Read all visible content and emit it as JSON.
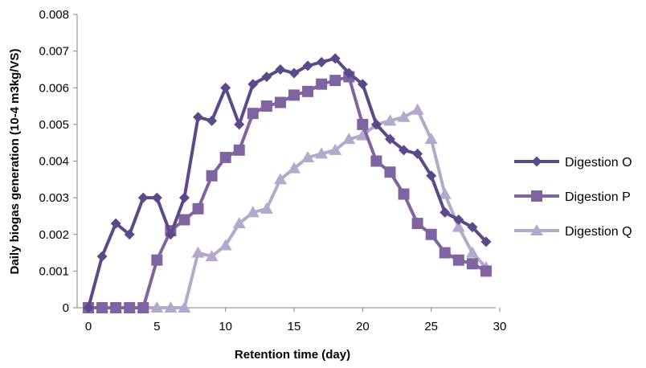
{
  "chart_data": {
    "type": "line",
    "xlabel": "Retention time (day)",
    "ylabel": "Daily biogas generation (10-4 m3kg/VS)",
    "xlim": [
      0,
      30
    ],
    "ylim": [
      0,
      0.008
    ],
    "xticks": [
      0,
      5,
      10,
      15,
      20,
      25,
      30
    ],
    "yticks": [
      0,
      0.001,
      0.002,
      0.003,
      0.004,
      0.005,
      0.006,
      0.007,
      0.008
    ],
    "ytick_labels": [
      "0",
      "0.001",
      "0.002",
      "0.003",
      "0.004",
      "0.005",
      "0.006",
      "0.007",
      "0.008"
    ],
    "grid": false,
    "legend_position": "right",
    "series": [
      {
        "name": "Digestion O",
        "marker": "diamond",
        "color": "#5b4a8a",
        "x": [
          0,
          1,
          2,
          3,
          4,
          5,
          6,
          7,
          8,
          9,
          10,
          11,
          12,
          13,
          14,
          15,
          16,
          17,
          18,
          19,
          20,
          21,
          22,
          23,
          24,
          25,
          26,
          27,
          28,
          29
        ],
        "y": [
          0,
          0.0014,
          0.0023,
          0.002,
          0.003,
          0.003,
          0.002,
          0.003,
          0.0052,
          0.0051,
          0.006,
          0.005,
          0.0061,
          0.0063,
          0.0065,
          0.0064,
          0.0066,
          0.0067,
          0.0068,
          0.0064,
          0.0061,
          0.005,
          0.0046,
          0.0043,
          0.0042,
          0.0036,
          0.0026,
          0.0024,
          0.0022,
          0.0018
        ]
      },
      {
        "name": "Digestion P",
        "marker": "square",
        "color": "#8064a2",
        "x": [
          0,
          1,
          2,
          3,
          4,
          5,
          6,
          7,
          8,
          9,
          10,
          11,
          12,
          13,
          14,
          15,
          16,
          17,
          18,
          19,
          20,
          21,
          22,
          23,
          24,
          25,
          26,
          27,
          28,
          29
        ],
        "y": [
          0,
          0,
          0,
          0,
          0,
          0.0013,
          0.0021,
          0.0024,
          0.0027,
          0.0036,
          0.0041,
          0.0043,
          0.0053,
          0.0055,
          0.0056,
          0.0058,
          0.0059,
          0.0061,
          0.0062,
          0.0063,
          0.005,
          0.004,
          0.0037,
          0.0031,
          0.0023,
          0.002,
          0.0015,
          0.0013,
          0.0012,
          0.001
        ]
      },
      {
        "name": "Digestion Q",
        "marker": "triangle",
        "color": "#b3a9cb",
        "x": [
          0,
          1,
          2,
          3,
          4,
          5,
          6,
          7,
          8,
          9,
          10,
          11,
          12,
          13,
          14,
          15,
          16,
          17,
          18,
          19,
          20,
          21,
          22,
          23,
          24,
          25,
          26,
          27,
          28,
          29
        ],
        "y": [
          0,
          0,
          0,
          0,
          0,
          0,
          0,
          0,
          0.0015,
          0.0014,
          0.0017,
          0.0023,
          0.0026,
          0.0027,
          0.0035,
          0.0038,
          0.0041,
          0.0042,
          0.0043,
          0.0046,
          0.0047,
          0.005,
          0.0051,
          0.0052,
          0.0054,
          0.0046,
          0.0031,
          0.0022,
          0.0015,
          0.0011
        ]
      }
    ]
  }
}
